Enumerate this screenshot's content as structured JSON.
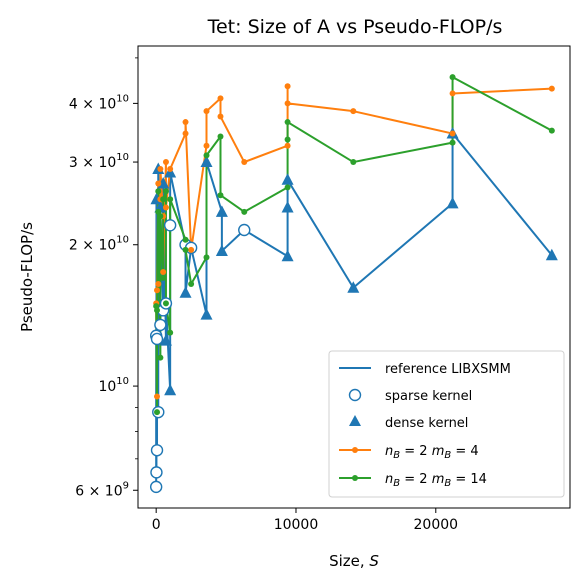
{
  "chart_data": {
    "type": "line",
    "title": "Tet: Size of A vs Pseudo-FLOP/s",
    "xlabel": "Size, S",
    "xlabel_text": "Size, ",
    "xlabel_var": "S",
    "ylabel": "Pseudo-FLOP/s",
    "x_scale": "linear",
    "y_scale": "log",
    "xlim": [
      -1300,
      29600
    ],
    "ylim": [
      5500000000.0,
      53000000000.0
    ],
    "grid": false,
    "legend_position": "lower-right",
    "x_ticks": [
      {
        "value": 0,
        "label": "0"
      },
      {
        "value": 10000,
        "label": "10000"
      },
      {
        "value": 20000,
        "label": "20000"
      }
    ],
    "y_ticks": [
      {
        "value": 6000000000.0,
        "base": "6 × 10",
        "exp": "9"
      },
      {
        "value": 10000000000.0,
        "base": "10",
        "exp": "10"
      },
      {
        "value": 20000000000.0,
        "base": "2 × 10",
        "exp": "10"
      },
      {
        "value": 30000000000.0,
        "base": "3 × 10",
        "exp": "10"
      },
      {
        "value": 40000000000.0,
        "base": "4 × 10",
        "exp": "10"
      }
    ],
    "y_minor_ticks": [
      7000000000.0,
      8000000000.0,
      9000000000.0,
      50000000000.0
    ],
    "legend": [
      {
        "key": "ref",
        "label": "reference LIBXSMM",
        "marker": "line"
      },
      {
        "key": "sparse",
        "label": "sparse kernel",
        "marker": "open-circle"
      },
      {
        "key": "dense",
        "label": "dense kernel",
        "marker": "triangle"
      },
      {
        "key": "m4",
        "label_n": "n",
        "label_nsub": "B",
        "label_mid": " = 2 ",
        "label_m": "m",
        "label_msub": "B",
        "label_end": " = 4",
        "marker": "line-dot"
      },
      {
        "key": "m14",
        "label_n": "n",
        "label_nsub": "B",
        "label_mid": " = 2 ",
        "label_m": "m",
        "label_msub": "B",
        "label_end": " = 14",
        "marker": "line-dot"
      }
    ],
    "series": [
      {
        "key": "ref",
        "name": "reference LIBXSMM",
        "color": "#1f77b4",
        "points": [
          {
            "x": 0,
            "y": 6100000000.0,
            "m": "o"
          },
          {
            "x": 0,
            "y": 12800000000.0,
            "m": "o"
          },
          {
            "x": 20,
            "y": 6550000000.0,
            "m": "o"
          },
          {
            "x": 20,
            "y": 25000000000.0,
            "m": "^"
          },
          {
            "x": 60,
            "y": 7300000000.0,
            "m": "o"
          },
          {
            "x": 60,
            "y": 12600000000.0,
            "m": "o"
          },
          {
            "x": 150,
            "y": 8800000000.0,
            "m": "o"
          },
          {
            "x": 150,
            "y": 29000000000.0,
            "m": "^"
          },
          {
            "x": 300,
            "y": 13500000000.0,
            "m": "o"
          },
          {
            "x": 300,
            "y": 24000000000.0,
            "m": "^"
          },
          {
            "x": 500,
            "y": 14500000000.0,
            "m": "o"
          },
          {
            "x": 500,
            "y": 27000000000.0,
            "m": "^"
          },
          {
            "x": 700,
            "y": 12500000000.0,
            "m": "^"
          },
          {
            "x": 700,
            "y": 15000000000.0,
            "m": "o"
          },
          {
            "x": 1000,
            "y": 9800000000.0,
            "m": "^"
          },
          {
            "x": 1000,
            "y": 22000000000.0,
            "m": "o"
          },
          {
            "x": 1000,
            "y": 28500000000.0,
            "m": "^"
          },
          {
            "x": 2100,
            "y": 20000000000.0,
            "m": "o"
          },
          {
            "x": 2100,
            "y": 15800000000.0,
            "m": "^"
          },
          {
            "x": 2500,
            "y": 19700000000.0,
            "m": "o"
          },
          {
            "x": 3600,
            "y": 14200000000.0,
            "m": "^"
          },
          {
            "x": 3600,
            "y": 30000000000.0,
            "m": "^"
          },
          {
            "x": 4700,
            "y": 23500000000.0,
            "m": "^"
          },
          {
            "x": 4700,
            "y": 19400000000.0,
            "m": "^"
          },
          {
            "x": 6300,
            "y": 21500000000.0,
            "m": "o"
          },
          {
            "x": 9400,
            "y": 18900000000.0,
            "m": "^"
          },
          {
            "x": 9400,
            "y": 24000000000.0,
            "m": "^"
          },
          {
            "x": 9400,
            "y": 27500000000.0,
            "m": "^"
          },
          {
            "x": 14100,
            "y": 16200000000.0,
            "m": "^"
          },
          {
            "x": 21200,
            "y": 24500000000.0,
            "m": "^"
          },
          {
            "x": 21200,
            "y": 34500000000.0,
            "m": "^"
          },
          {
            "x": 28300,
            "y": 19000000000.0,
            "m": "^"
          }
        ]
      },
      {
        "key": "m4",
        "name": "nB = 2 mB = 4",
        "color": "#ff7f0e",
        "points": [
          {
            "x": 0,
            "y": 15000000000.0
          },
          {
            "x": 60,
            "y": 9500000000.0
          },
          {
            "x": 60,
            "y": 16000000000.0
          },
          {
            "x": 150,
            "y": 27000000000.0
          },
          {
            "x": 150,
            "y": 16500000000.0
          },
          {
            "x": 300,
            "y": 25000000000.0
          },
          {
            "x": 300,
            "y": 29000000000.0
          },
          {
            "x": 500,
            "y": 23000000000.0
          },
          {
            "x": 500,
            "y": 17500000000.0
          },
          {
            "x": 700,
            "y": 30000000000.0
          },
          {
            "x": 700,
            "y": 24000000000.0
          },
          {
            "x": 1000,
            "y": 29000000000.0
          },
          {
            "x": 2100,
            "y": 34500000000.0
          },
          {
            "x": 2100,
            "y": 36500000000.0
          },
          {
            "x": 2500,
            "y": 19500000000.0
          },
          {
            "x": 3600,
            "y": 32500000000.0
          },
          {
            "x": 3600,
            "y": 38500000000.0
          },
          {
            "x": 4600,
            "y": 41000000000.0
          },
          {
            "x": 4600,
            "y": 37500000000.0
          },
          {
            "x": 6300,
            "y": 30000000000.0
          },
          {
            "x": 9400,
            "y": 32500000000.0
          },
          {
            "x": 9400,
            "y": 43500000000.0
          },
          {
            "x": 9400,
            "y": 40000000000.0
          },
          {
            "x": 14100,
            "y": 38500000000.0
          },
          {
            "x": 21200,
            "y": 34500000000.0
          },
          {
            "x": 21200,
            "y": 42000000000.0
          },
          {
            "x": 28300,
            "y": 43000000000.0
          }
        ]
      },
      {
        "key": "m14",
        "name": "nB = 2 mB = 14",
        "color": "#2ca02c",
        "points": [
          {
            "x": 0,
            "y": 14800000000.0
          },
          {
            "x": 60,
            "y": 8800000000.0
          },
          {
            "x": 60,
            "y": 14500000000.0
          },
          {
            "x": 150,
            "y": 26000000000.0
          },
          {
            "x": 150,
            "y": 23500000000.0
          },
          {
            "x": 300,
            "y": 11500000000.0
          },
          {
            "x": 300,
            "y": 23000000000.0
          },
          {
            "x": 500,
            "y": 17000000000.0
          },
          {
            "x": 500,
            "y": 25000000000.0
          },
          {
            "x": 700,
            "y": 26000000000.0
          },
          {
            "x": 700,
            "y": 15000000000.0
          },
          {
            "x": 1000,
            "y": 13000000000.0
          },
          {
            "x": 1000,
            "y": 25000000000.0
          },
          {
            "x": 2100,
            "y": 20500000000.0
          },
          {
            "x": 2100,
            "y": 19500000000.0
          },
          {
            "x": 2500,
            "y": 16500000000.0
          },
          {
            "x": 3600,
            "y": 18800000000.0
          },
          {
            "x": 3600,
            "y": 31000000000.0
          },
          {
            "x": 4600,
            "y": 34000000000.0
          },
          {
            "x": 4600,
            "y": 25500000000.0
          },
          {
            "x": 6300,
            "y": 23500000000.0
          },
          {
            "x": 9400,
            "y": 26500000000.0
          },
          {
            "x": 9400,
            "y": 33500000000.0
          },
          {
            "x": 9400,
            "y": 36500000000.0
          },
          {
            "x": 14100,
            "y": 30000000000.0
          },
          {
            "x": 21200,
            "y": 33000000000.0
          },
          {
            "x": 21200,
            "y": 45500000000.0
          },
          {
            "x": 28300,
            "y": 35000000000.0
          }
        ]
      }
    ]
  }
}
